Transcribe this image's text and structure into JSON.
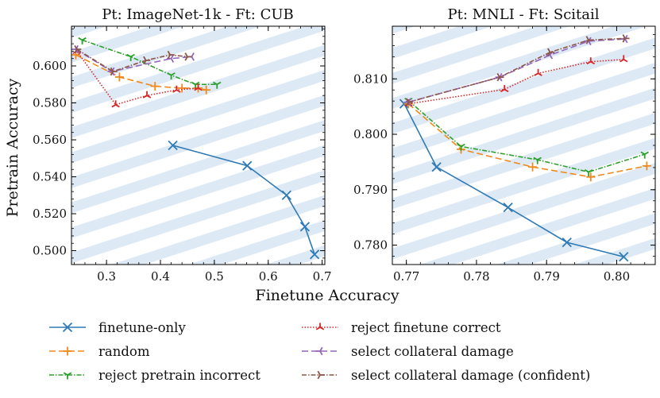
{
  "figure": {
    "xlabel": "Finetune Accuracy",
    "ylabel": "Pretrain Accuracy"
  },
  "legend": [
    {
      "label": "finetune-only",
      "color": "#2f7ab5",
      "marker": "x",
      "dash": ""
    },
    {
      "label": "random",
      "color": "#f08a1e",
      "marker": "plus",
      "dash": "8,4"
    },
    {
      "label": "reject pretrain incorrect",
      "color": "#2ca02c",
      "marker": "tri_down",
      "dash": "6,2,1.5,2"
    },
    {
      "label": "reject finetune correct",
      "color": "#d62728",
      "marker": "tri_up",
      "dash": "1.5,2"
    },
    {
      "label": "select collateral damage",
      "color": "#9467bd",
      "marker": "tri_left",
      "dash": "8,4"
    },
    {
      "label": "select collateral damage (confident)",
      "color": "#8c564b",
      "marker": "tri_right",
      "dash": "6,2,1.5,2"
    }
  ],
  "chart_data": [
    {
      "type": "line",
      "title": "Pt: ImageNet-1k - Ft: CUB",
      "xlim": [
        0.235,
        0.705
      ],
      "ylim": [
        0.4925,
        0.6215
      ],
      "xticks": [
        0.3,
        0.4,
        0.5,
        0.6,
        0.7
      ],
      "xtick_labels": [
        "0.3",
        "0.4",
        "0.5",
        "0.6",
        "0.7"
      ],
      "yticks": [
        0.5,
        0.52,
        0.54,
        0.56,
        0.58,
        0.6
      ],
      "ytick_labels": [
        "0.500",
        "0.520",
        "0.540",
        "0.560",
        "0.580",
        "0.600"
      ],
      "series": [
        {
          "name": "finetune-only",
          "x": [
            0.423,
            0.561,
            0.634,
            0.668,
            0.686
          ],
          "y": [
            0.557,
            0.546,
            0.53,
            0.513,
            0.498
          ]
        },
        {
          "name": "random",
          "x": [
            0.243,
            0.324,
            0.39,
            0.44,
            0.47,
            0.485
          ],
          "y": [
            0.606,
            0.594,
            0.589,
            0.588,
            0.588,
            0.587
          ]
        },
        {
          "name": "reject pretrain incorrect",
          "x": [
            0.255,
            0.345,
            0.42,
            0.465,
            0.505
          ],
          "y": [
            0.614,
            0.605,
            0.595,
            0.59,
            0.59
          ]
        },
        {
          "name": "reject finetune correct",
          "x": [
            0.245,
            0.317,
            0.375,
            0.43,
            0.47
          ],
          "y": [
            0.608,
            0.579,
            0.584,
            0.587,
            0.588
          ]
        },
        {
          "name": "select collateral damage",
          "x": [
            0.243,
            0.31,
            0.42,
            0.458
          ],
          "y": [
            0.609,
            0.597,
            0.604,
            0.605
          ]
        },
        {
          "name": "select collateral damage (confident)",
          "x": [
            0.245,
            0.312,
            0.373,
            0.418,
            0.45
          ],
          "y": [
            0.609,
            0.597,
            0.603,
            0.606,
            0.605
          ]
        }
      ]
    },
    {
      "type": "line",
      "title": "Pt: MNLI - Ft: Scitail",
      "xlim": [
        0.768,
        0.8055
      ],
      "ylim": [
        0.7765,
        0.8195
      ],
      "xticks": [
        0.77,
        0.78,
        0.79,
        0.8
      ],
      "xtick_labels": [
        "0.77",
        "0.78",
        "0.79",
        "0.80"
      ],
      "yticks": [
        0.78,
        0.79,
        0.8,
        0.81
      ],
      "ytick_labels": [
        "0.780",
        "0.790",
        "0.800",
        "0.810"
      ],
      "series": [
        {
          "name": "finetune-only",
          "x": [
            0.7697,
            0.7743,
            0.7845,
            0.7929,
            0.801
          ],
          "y": [
            0.8055,
            0.7941,
            0.7868,
            0.7805,
            0.7779
          ]
        },
        {
          "name": "random",
          "x": [
            0.7703,
            0.7778,
            0.788,
            0.7963,
            0.8043
          ],
          "y": [
            0.8055,
            0.7973,
            0.7941,
            0.7923,
            0.7943
          ]
        },
        {
          "name": "reject pretrain incorrect",
          "x": [
            0.7703,
            0.7778,
            0.7887,
            0.796,
            0.804
          ],
          "y": [
            0.8061,
            0.7978,
            0.7954,
            0.7932,
            0.7964
          ]
        },
        {
          "name": "reject finetune correct",
          "x": [
            0.7703,
            0.784,
            0.7888,
            0.7963,
            0.801
          ],
          "y": [
            0.8055,
            0.8081,
            0.811,
            0.8131,
            0.8135
          ]
        },
        {
          "name": "select collateral damage",
          "x": [
            0.7703,
            0.7833,
            0.7905,
            0.796,
            0.8012
          ],
          "y": [
            0.8058,
            0.8103,
            0.8143,
            0.8168,
            0.8172
          ]
        },
        {
          "name": "select collateral damage (confident)",
          "x": [
            0.7703,
            0.7833,
            0.7905,
            0.796,
            0.8012
          ],
          "y": [
            0.8058,
            0.8103,
            0.8148,
            0.817,
            0.8173
          ]
        }
      ]
    }
  ]
}
